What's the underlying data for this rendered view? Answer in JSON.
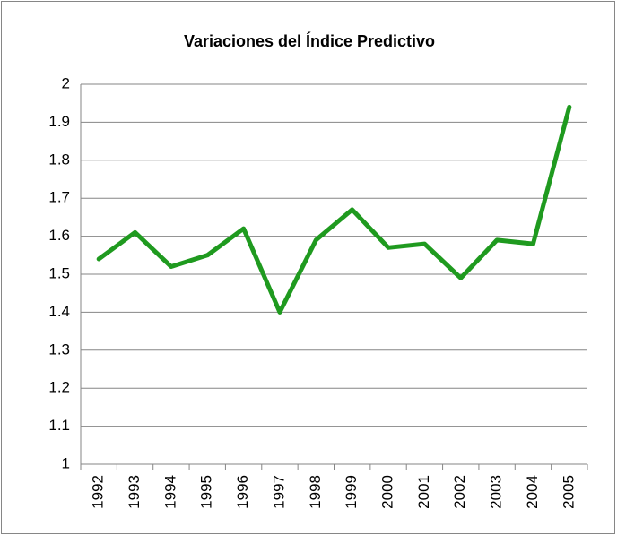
{
  "chart_data": {
    "type": "line",
    "title": "Variaciones del Índice Predictivo",
    "categories": [
      "1992",
      "1993",
      "1994",
      "1995",
      "1996",
      "1997",
      "1998",
      "1999",
      "2000",
      "2001",
      "2002",
      "2003",
      "2004",
      "2005"
    ],
    "values": [
      1.54,
      1.61,
      1.52,
      1.55,
      1.62,
      1.4,
      1.59,
      1.67,
      1.57,
      1.58,
      1.49,
      1.59,
      1.58,
      1.94
    ],
    "color": "#1f9a1f",
    "ylim": [
      1,
      2
    ],
    "yticks": [
      1,
      1.1,
      1.2,
      1.3,
      1.4,
      1.5,
      1.6,
      1.7,
      1.8,
      1.9,
      2
    ],
    "grid": true
  }
}
